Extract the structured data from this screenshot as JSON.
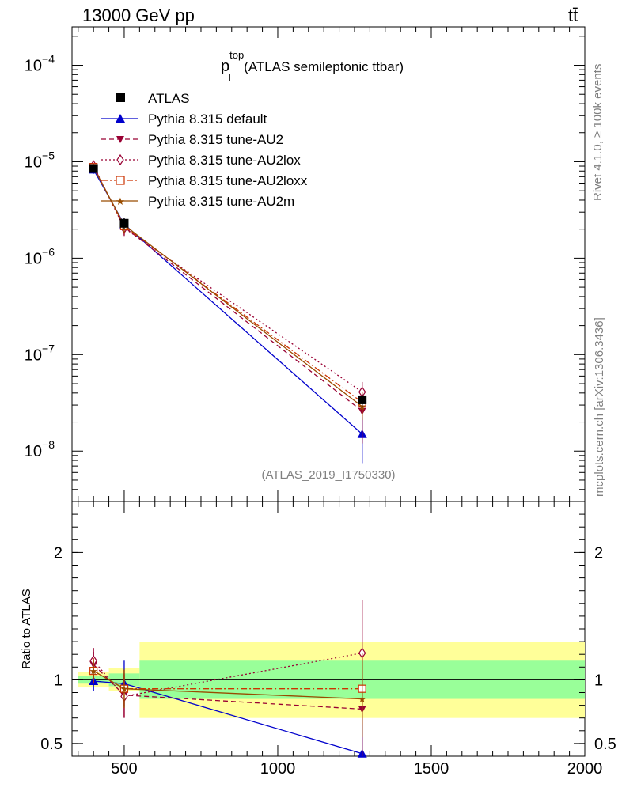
{
  "header": {
    "beam": "13000 GeV pp",
    "process": "tt̄"
  },
  "side": {
    "rivet": "Rivet 4.1.0, ≥ 100k events",
    "mcplots": "mcplots.cern.ch [arXiv:1306.3436]"
  },
  "chart_data": {
    "type": "line",
    "title_main": "p",
    "title_sup": "top",
    "title_sub": "T",
    "title_rest": "(ATLAS semileptonic ttbar)",
    "analysis_tag": "(ATLAS_2019_I1750330)",
    "xlim": [
      330,
      2000
    ],
    "xticks": [
      500,
      1000,
      1500,
      2000
    ],
    "xtick_labels": [
      "500",
      "1000",
      "1500",
      "2000"
    ],
    "ylim_log": [
      3e-09,
      0.00025
    ],
    "ytick_labels": [
      {
        "v": 0.0001,
        "base": "10",
        "exp": "−4"
      },
      {
        "v": 1e-05,
        "base": "10",
        "exp": "−5"
      },
      {
        "v": 1e-06,
        "base": "10",
        "exp": "−6"
      },
      {
        "v": 1e-07,
        "base": "10",
        "exp": "−7"
      },
      {
        "v": 1e-08,
        "base": "10",
        "exp": "−8"
      }
    ],
    "ratio_ylabel": "Ratio to ATLAS",
    "ratio_ylim": [
      0.4,
      2.4
    ],
    "ratio_ytick_labels": [
      {
        "v": 0.5,
        "label": "0.5"
      },
      {
        "v": 1,
        "label": "1"
      },
      {
        "v": 2,
        "label": "2"
      }
    ],
    "bins": [
      {
        "lo": 350,
        "hi": 450,
        "inner": 0.03,
        "outer": 0.06
      },
      {
        "lo": 450,
        "hi": 550,
        "inner": 0.05,
        "outer": 0.09
      },
      {
        "lo": 550,
        "hi": 2000,
        "inner": 0.15,
        "outer": 0.3
      }
    ],
    "x": [
      400,
      500,
      1275
    ],
    "series": [
      {
        "name": "ATLAS",
        "style": "data",
        "color": "#000000",
        "dash": "",
        "marker": "square",
        "values": [
          8.5e-06,
          2.3e-06,
          3.4e-08
        ],
        "errors": [
          7e-07,
          3e-07,
          5e-09
        ],
        "ratio": [
          1,
          1,
          1
        ],
        "ratio_err": [
          0,
          0,
          0
        ]
      },
      {
        "name": "Pythia 8.315 default",
        "style": "mc",
        "color": "#0000cc",
        "dash": "",
        "marker": "triangle-up",
        "values": [
          8.3e-06,
          2.25e-06,
          1.5e-08
        ],
        "errors": [
          8e-07,
          3.5e-07,
          7.5e-09
        ],
        "ratio": [
          0.99,
          0.97,
          0.42
        ],
        "ratio_err": [
          0.08,
          0.18,
          0.5
        ]
      },
      {
        "name": "Pythia 8.315 tune-AU2",
        "style": "mc",
        "color": "#990033",
        "dash": "6,4",
        "marker": "triangle-down",
        "values": [
          9e-06,
          2.1e-06,
          2.6e-08
        ],
        "errors": [
          8e-07,
          3.5e-07,
          1.4e-08
        ],
        "ratio": [
          1.12,
          0.88,
          0.77
        ],
        "ratio_err": [
          0.1,
          0.17,
          0.45
        ]
      },
      {
        "name": "Pythia 8.315 tune-AU2lox",
        "style": "mc",
        "color": "#990033",
        "dash": "2,3",
        "marker": "diamond",
        "values": [
          9.1e-06,
          2.05e-06,
          4.1e-08
        ],
        "errors": [
          8e-07,
          3.5e-07,
          1.1e-08
        ],
        "ratio": [
          1.15,
          0.87,
          1.21
        ],
        "ratio_err": [
          0.1,
          0.17,
          0.42
        ]
      },
      {
        "name": "Pythia 8.315 tune-AU2loxx",
        "style": "mc",
        "color": "#cc3300",
        "dash": "8,3,2,3",
        "marker": "square-open",
        "values": [
          8.8e-06,
          2.15e-06,
          3.2e-08
        ],
        "errors": [
          8e-07,
          3.5e-07,
          9e-09
        ],
        "ratio": [
          1.07,
          0.93,
          0.93
        ],
        "ratio_err": [
          0.1,
          0.15,
          0.28
        ]
      },
      {
        "name": "Pythia 8.315 tune-AU2m",
        "style": "mc",
        "color": "#994c00",
        "dash": "",
        "marker": "star",
        "values": [
          8.7e-06,
          2.2e-06,
          2.9e-08
        ],
        "errors": [
          8e-07,
          3.5e-07,
          8e-09
        ],
        "ratio": [
          1.07,
          0.93,
          0.85
        ],
        "ratio_err": [
          0.08,
          0.15,
          0.3
        ]
      }
    ]
  }
}
